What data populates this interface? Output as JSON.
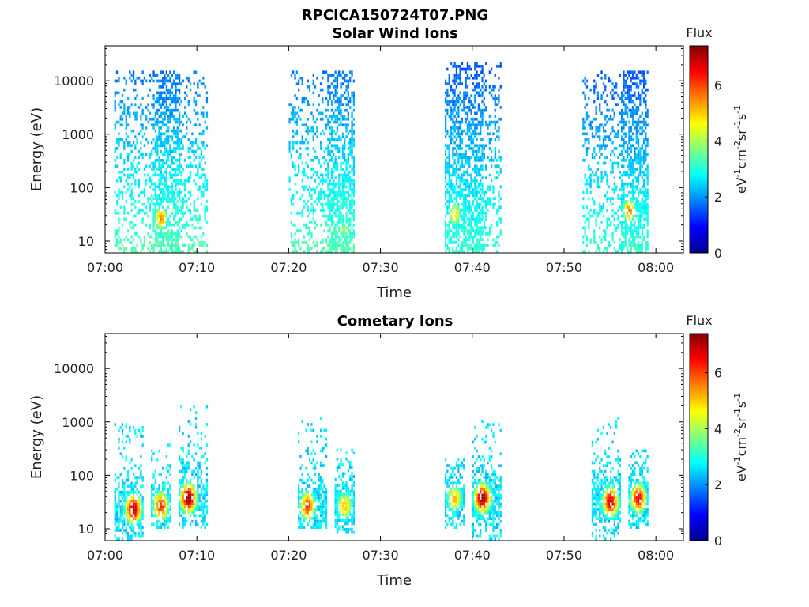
{
  "figure": {
    "title": "RPCICA150724T07.PNG"
  },
  "chart_data": [
    {
      "type": "heatmap",
      "title": "Solar Wind Ions",
      "xlabel": "Time",
      "ylabel": "Energy (eV)",
      "y_scale": "log",
      "xlim": [
        "07:00",
        "08:03"
      ],
      "ylim": [
        6,
        45000
      ],
      "x_ticks": [
        "07:00",
        "07:10",
        "07:20",
        "07:30",
        "07:40",
        "07:50",
        "08:00"
      ],
      "y_ticks": [
        "10",
        "100",
        "1000",
        "10000"
      ],
      "colorbar": {
        "label_top": "Flux",
        "units": "eV-1cm-2sr-1s-1",
        "ticks": [
          "0",
          "2",
          "4",
          "6"
        ],
        "range": [
          0,
          7.4
        ],
        "colormap": "jet"
      },
      "bursts": [
        {
          "start": "07:01",
          "end": "07:11",
          "core_start": "07:05",
          "core_end": "07:08",
          "e_min": 6,
          "e_max": 15000,
          "peak_center": "07:06",
          "peak_energy": 25,
          "peak_flux": 5.3,
          "low_flux": 1.5
        },
        {
          "start": "07:20",
          "end": "07:27",
          "core_start": "07:24",
          "core_end": "07:27",
          "e_min": 6,
          "e_max": 15000,
          "peak_center": "07:26",
          "peak_energy": 15,
          "peak_flux": 3.8,
          "low_flux": 1.5
        },
        {
          "start": "07:37",
          "end": "07:43",
          "core_start": "07:37",
          "core_end": "07:41",
          "e_min": 6,
          "e_max": 20000,
          "peak_center": "07:38",
          "peak_energy": 30,
          "peak_flux": 4.8,
          "low_flux": 1.3
        },
        {
          "start": "07:52",
          "end": "07:59",
          "core_start": "07:56",
          "core_end": "07:59",
          "e_min": 6,
          "e_max": 15000,
          "peak_center": "07:57",
          "peak_energy": 35,
          "peak_flux": 5.5,
          "low_flux": 1.3
        }
      ]
    },
    {
      "type": "heatmap",
      "title": "Cometary Ions",
      "xlabel": "Time",
      "ylabel": "Energy (eV)",
      "y_scale": "log",
      "xlim": [
        "07:00",
        "08:03"
      ],
      "ylim": [
        6,
        45000
      ],
      "x_ticks": [
        "07:00",
        "07:10",
        "07:20",
        "07:30",
        "07:40",
        "07:50",
        "08:00"
      ],
      "y_ticks": [
        "10",
        "100",
        "1000",
        "10000"
      ],
      "colorbar": {
        "label_top": "Flux",
        "units": "eV-1cm-2sr-1s-1",
        "ticks": [
          "0",
          "2",
          "4",
          "6"
        ],
        "range": [
          0,
          7.4
        ],
        "colormap": "jet"
      },
      "bursts": [
        {
          "start": "07:01",
          "end": "07:04",
          "e_min": 6,
          "e_max": 900,
          "peak_center": "07:03",
          "peak_energy": 22,
          "peak_flux": 7.0
        },
        {
          "start": "07:05",
          "end": "07:07",
          "e_min": 10,
          "e_max": 500,
          "peak_center": "07:06",
          "peak_energy": 25,
          "peak_flux": 6.0
        },
        {
          "start": "07:08",
          "end": "07:11",
          "e_min": 10,
          "e_max": 2000,
          "peak_center": "07:09",
          "peak_energy": 35,
          "peak_flux": 7.2
        },
        {
          "start": "07:21",
          "end": "07:24",
          "e_min": 10,
          "e_max": 1100,
          "peak_center": "07:22",
          "peak_energy": 25,
          "peak_flux": 6.0
        },
        {
          "start": "07:25",
          "end": "07:27",
          "e_min": 8,
          "e_max": 300,
          "peak_center": "07:26",
          "peak_energy": 25,
          "peak_flux": 5.0
        },
        {
          "start": "07:37",
          "end": "07:39",
          "e_min": 10,
          "e_max": 200,
          "peak_center": "07:38",
          "peak_energy": 35,
          "peak_flux": 5.0
        },
        {
          "start": "07:40",
          "end": "07:43",
          "e_min": 6,
          "e_max": 1000,
          "peak_center": "07:41",
          "peak_energy": 35,
          "peak_flux": 7.2
        },
        {
          "start": "07:53",
          "end": "07:56",
          "e_min": 6,
          "e_max": 1200,
          "peak_center": "07:55",
          "peak_energy": 30,
          "peak_flux": 6.8
        },
        {
          "start": "07:57",
          "end": "07:59",
          "e_min": 10,
          "e_max": 300,
          "peak_center": "07:58",
          "peak_energy": 35,
          "peak_flux": 6.5
        }
      ]
    }
  ]
}
